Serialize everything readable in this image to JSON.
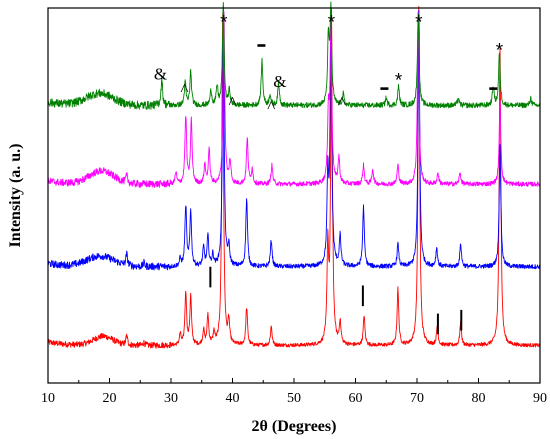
{
  "chart_data": {
    "type": "line",
    "title": "",
    "xlabel": "2θ (Degrees)",
    "ylabel": "Intensity (a. u.)",
    "xlim": [
      10,
      90
    ],
    "ylim": [
      0,
      100
    ],
    "xticks": [
      10,
      20,
      30,
      40,
      50,
      60,
      70,
      80,
      90
    ],
    "grid": false,
    "legend": "none",
    "series": [
      {
        "color": "#ff0000",
        "baseline": 10,
        "noise": 0.5,
        "halo": {
          "center": 19,
          "height": 2.4,
          "width": 1.6
        },
        "peaks": [
          [
            22.8,
            2.5
          ],
          [
            25.6,
            0.8
          ],
          [
            31.5,
            3
          ],
          [
            32.4,
            14
          ],
          [
            33.2,
            13
          ],
          [
            35.3,
            4
          ],
          [
            36,
            8
          ],
          [
            37,
            3
          ],
          [
            38.4,
            88
          ],
          [
            39.4,
            6
          ],
          [
            42.3,
            10
          ],
          [
            46.3,
            5
          ],
          [
            55.5,
            25
          ],
          [
            56.1,
            88
          ],
          [
            57.5,
            6
          ],
          [
            61.4,
            8
          ],
          [
            66.9,
            15
          ],
          [
            70.3,
            90
          ],
          [
            73.3,
            5
          ],
          [
            77.1,
            6
          ],
          [
            83.5,
            80
          ]
        ]
      },
      {
        "color": "#0000ff",
        "baseline": 31,
        "noise": 0.6,
        "halo": {
          "center": 18.5,
          "height": 2.8,
          "width": 2.2
        },
        "peaks": [
          [
            22.8,
            3
          ],
          [
            25.6,
            1
          ],
          [
            31.5,
            2
          ],
          [
            32.4,
            16
          ],
          [
            33.2,
            15
          ],
          [
            35.3,
            5
          ],
          [
            36,
            8
          ],
          [
            36.8,
            3
          ],
          [
            38.5,
            68
          ],
          [
            39.4,
            5
          ],
          [
            42.3,
            18
          ],
          [
            46.3,
            7
          ],
          [
            55.5,
            23
          ],
          [
            56,
            66
          ],
          [
            57.5,
            8
          ],
          [
            61.3,
            16
          ],
          [
            66.9,
            6
          ],
          [
            70.3,
            68
          ],
          [
            73.2,
            5
          ],
          [
            77.1,
            6
          ],
          [
            83.5,
            33
          ]
        ]
      },
      {
        "color": "#ff00ff",
        "baseline": 53,
        "noise": 0.6,
        "halo": {
          "center": 18.7,
          "height": 3.5,
          "width": 2
        },
        "peaks": [
          [
            22.8,
            2
          ],
          [
            30.8,
            3
          ],
          [
            32.4,
            18
          ],
          [
            33.3,
            17
          ],
          [
            35.5,
            5
          ],
          [
            36.2,
            9
          ],
          [
            38.6,
            46
          ],
          [
            39.6,
            6
          ],
          [
            42.4,
            12
          ],
          [
            43.2,
            4
          ],
          [
            46.4,
            5
          ],
          [
            55.6,
            18
          ],
          [
            56,
            44
          ],
          [
            57.3,
            7
          ],
          [
            61.3,
            5
          ],
          [
            62.8,
            4
          ],
          [
            66.9,
            5
          ],
          [
            70.2,
            46
          ],
          [
            73.4,
            3
          ],
          [
            77,
            3
          ],
          [
            83.5,
            22
          ]
        ]
      },
      {
        "color": "#008000",
        "baseline": 74,
        "noise": 0.7,
        "halo": {
          "center": 18.4,
          "height": 3.2,
          "width": 2.2
        },
        "peaks": [
          [
            28.5,
            7
          ],
          [
            32.3,
            6
          ],
          [
            33.2,
            9
          ],
          [
            36.5,
            4
          ],
          [
            37.5,
            5
          ],
          [
            38.5,
            27
          ],
          [
            39.5,
            4
          ],
          [
            44.8,
            12
          ],
          [
            46.1,
            3
          ],
          [
            47.5,
            6
          ],
          [
            55.6,
            18
          ],
          [
            56,
            25
          ],
          [
            58,
            3
          ],
          [
            65,
            2
          ],
          [
            67,
            5
          ],
          [
            70.2,
            24
          ],
          [
            76.7,
            2
          ],
          [
            82.4,
            5
          ],
          [
            83.4,
            14
          ],
          [
            88.5,
            2
          ]
        ]
      }
    ],
    "annotations": [
      {
        "text": "*",
        "x": 38.6,
        "y": 97.5
      },
      {
        "text": "*",
        "x": 56.1,
        "y": 97.5
      },
      {
        "text": "*",
        "x": 70.3,
        "y": 97.5
      },
      {
        "text": "*",
        "x": 83.4,
        "y": 90
      },
      {
        "text": "*",
        "x": 67,
        "y": 82
      },
      {
        "text": "&",
        "x": 28.3,
        "y": 82.5
      },
      {
        "text": "&",
        "x": 47.7,
        "y": 80.5
      },
      {
        "text": "^",
        "x": 32.2,
        "y": 79.5
      },
      {
        "text": "^",
        "x": 40,
        "y": 76
      },
      {
        "text": "^",
        "x": 46.3,
        "y": 75
      },
      {
        "text": "^",
        "x": 57.8,
        "y": 76
      },
      {
        "text": "-",
        "x": 44.7,
        "y": 90
      },
      {
        "text": "-",
        "x": 64.7,
        "y": 78.5
      },
      {
        "text": "-",
        "x": 82.4,
        "y": 78.5
      }
    ],
    "markers": [
      {
        "x": 36.4,
        "y1": 25.5,
        "y2": 31
      },
      {
        "x": 61.2,
        "y1": 20.5,
        "y2": 26
      },
      {
        "x": 73.4,
        "y1": 13,
        "y2": 18.5
      },
      {
        "x": 77.2,
        "y1": 14,
        "y2": 19.5
      }
    ]
  }
}
